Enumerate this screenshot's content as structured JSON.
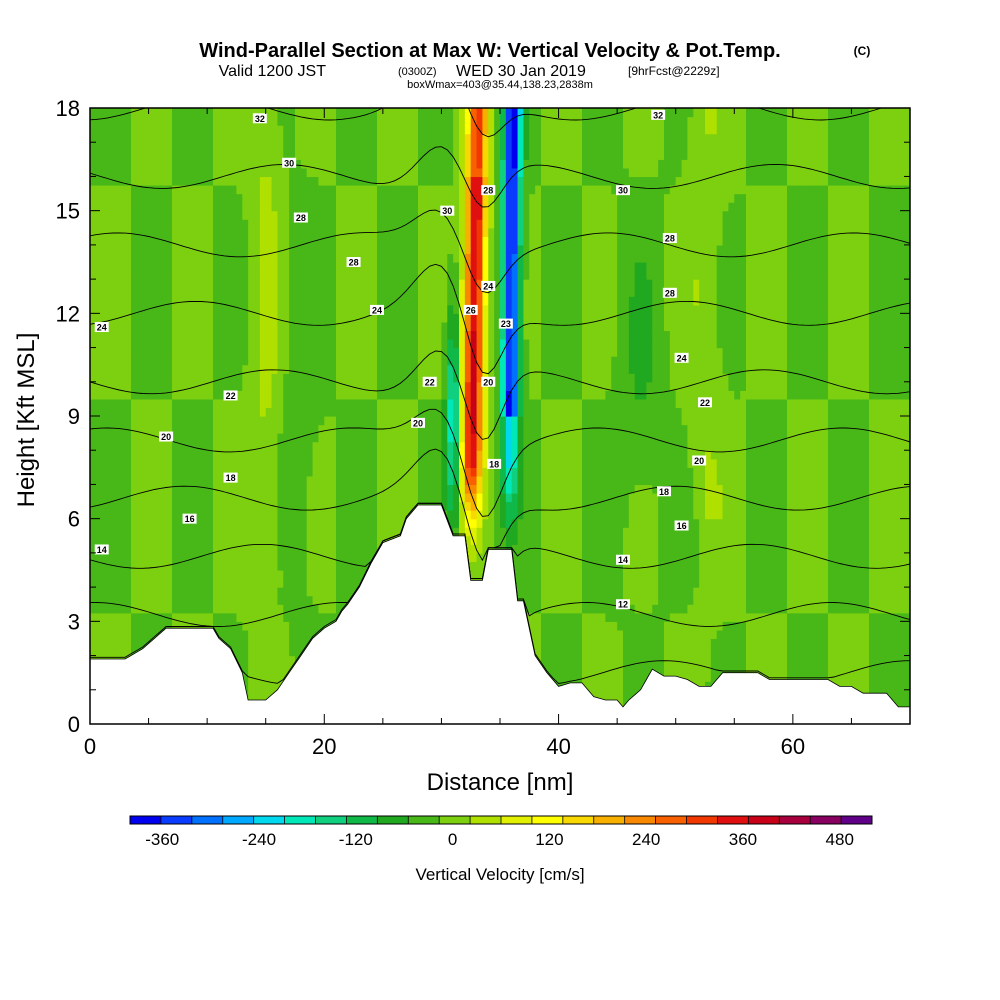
{
  "chart_data": {
    "type": "contour_cross_section",
    "title": "Wind-Parallel Section at Max W: Vertical Velocity & Pot.Temp.",
    "title_mark": "(C)",
    "subtitle_valid": "Valid 1200 JST",
    "subtitle_utc": "(0300Z)",
    "subtitle_date": "WED 30 Jan 2019",
    "subtitle_fcst": "[9hrFcst@2229z]",
    "subtitle_box": "boxWmax=403@35.44,138.23,2838m",
    "xlabel": "Distance [nm]",
    "ylabel": "Height [Kft MSL]",
    "xlim": [
      0,
      70
    ],
    "ylim": [
      0,
      18
    ],
    "x_ticks": [
      "0",
      "20",
      "40",
      "60"
    ],
    "y_ticks": [
      "0",
      "3",
      "6",
      "9",
      "12",
      "15",
      "18"
    ],
    "colorbar": {
      "label": "Vertical Velocity [cm/s]",
      "ticks": [
        "-360",
        "-240",
        "-120",
        "0",
        "120",
        "240",
        "360",
        "480"
      ],
      "min": -400,
      "max": 520,
      "step": 40,
      "colors": [
        "#0000f0",
        "#0a3cff",
        "#0070ff",
        "#00a8ff",
        "#00d8f0",
        "#00e8b8",
        "#10d080",
        "#10b848",
        "#20a820",
        "#48b818",
        "#7cd010",
        "#b0e000",
        "#e0f000",
        "#ffff00",
        "#f8d800",
        "#f8b000",
        "#f88800",
        "#f86000",
        "#f03800",
        "#e01010",
        "#c80018",
        "#a8003c",
        "#880060",
        "#600088"
      ]
    },
    "terrain": [
      [
        0,
        1.9
      ],
      [
        3,
        1.9
      ],
      [
        4.5,
        2.2
      ],
      [
        5.5,
        2.5
      ],
      [
        6.5,
        2.8
      ],
      [
        10.5,
        2.8
      ],
      [
        11,
        2.5
      ],
      [
        12,
        2.2
      ],
      [
        13,
        1.5
      ],
      [
        13.5,
        0.7
      ],
      [
        15,
        0.7
      ],
      [
        16,
        1
      ],
      [
        17,
        1.5
      ],
      [
        18,
        2
      ],
      [
        19,
        2.5
      ],
      [
        20,
        2.8
      ],
      [
        21,
        3
      ],
      [
        21.5,
        3.3
      ],
      [
        22,
        3.5
      ],
      [
        23,
        4
      ],
      [
        24,
        4.7
      ],
      [
        25,
        5.3
      ],
      [
        26.5,
        5.5
      ],
      [
        27,
        6
      ],
      [
        28,
        6.4
      ],
      [
        30,
        6.4
      ],
      [
        31,
        5.5
      ],
      [
        32,
        5.5
      ],
      [
        32.5,
        4.2
      ],
      [
        33.5,
        4.2
      ],
      [
        34,
        5.1
      ],
      [
        36,
        5.1
      ],
      [
        36.5,
        3.6
      ],
      [
        37,
        3.6
      ],
      [
        38,
        2
      ],
      [
        39,
        1.5
      ],
      [
        40,
        1.1
      ],
      [
        41,
        1.2
      ],
      [
        42,
        1.2
      ],
      [
        43,
        0.8
      ],
      [
        44,
        0.7
      ],
      [
        45,
        0.7
      ],
      [
        45.5,
        0.5
      ],
      [
        46,
        0.7
      ],
      [
        47,
        1
      ],
      [
        47.5,
        1.3
      ],
      [
        48,
        1.6
      ],
      [
        49,
        1.4
      ],
      [
        50,
        1.4
      ],
      [
        51,
        1.3
      ],
      [
        52,
        1.1
      ],
      [
        53,
        1.1
      ],
      [
        54,
        1.5
      ],
      [
        56,
        1.5
      ],
      [
        57,
        1.5
      ],
      [
        58,
        1.3
      ],
      [
        59,
        1.3
      ],
      [
        60,
        1.3
      ],
      [
        61,
        1.3
      ],
      [
        62,
        1.3
      ],
      [
        63,
        1.3
      ],
      [
        64,
        1.1
      ],
      [
        65,
        1.1
      ],
      [
        66,
        0.9
      ],
      [
        68,
        0.9
      ],
      [
        69,
        0.5
      ],
      [
        70,
        0.5
      ]
    ],
    "isentrope_levels": [
      12,
      14,
      16,
      18,
      20,
      22,
      24,
      26,
      28,
      30,
      32
    ],
    "isentrope_labels": [
      {
        "text": "32",
        "x": 14.5,
        "y": 17.7
      },
      {
        "text": "32",
        "x": 48.5,
        "y": 17.8
      },
      {
        "text": "30",
        "x": 17,
        "y": 16.4
      },
      {
        "text": "30",
        "x": 30.5,
        "y": 15.0
      },
      {
        "text": "30",
        "x": 45.5,
        "y": 15.6
      },
      {
        "text": "28",
        "x": 18,
        "y": 14.8
      },
      {
        "text": "28",
        "x": 22.5,
        "y": 13.5
      },
      {
        "text": "28",
        "x": 34,
        "y": 15.6
      },
      {
        "text": "28",
        "x": 49.5,
        "y": 14.2
      },
      {
        "text": "28",
        "x": 49.5,
        "y": 12.6
      },
      {
        "text": "24",
        "x": 1,
        "y": 11.6
      },
      {
        "text": "24",
        "x": 24.5,
        "y": 12.1
      },
      {
        "text": "24",
        "x": 34,
        "y": 12.8
      },
      {
        "text": "24",
        "x": 50.5,
        "y": 10.7
      },
      {
        "text": "26",
        "x": 32.5,
        "y": 12.1
      },
      {
        "text": "23",
        "x": 35.5,
        "y": 11.7
      },
      {
        "text": "22",
        "x": 12,
        "y": 9.6
      },
      {
        "text": "22",
        "x": 29,
        "y": 10.0
      },
      {
        "text": "22",
        "x": 52.5,
        "y": 9.4
      },
      {
        "text": "20",
        "x": 6.5,
        "y": 8.4
      },
      {
        "text": "20",
        "x": 28,
        "y": 8.8
      },
      {
        "text": "20",
        "x": 34,
        "y": 10.0
      },
      {
        "text": "20",
        "x": 52,
        "y": 7.7
      },
      {
        "text": "18",
        "x": 12,
        "y": 7.2
      },
      {
        "text": "18",
        "x": 34.5,
        "y": 7.6
      },
      {
        "text": "18",
        "x": 49,
        "y": 6.8
      },
      {
        "text": "16",
        "x": 8.5,
        "y": 6.0
      },
      {
        "text": "16",
        "x": 50.5,
        "y": 5.8
      },
      {
        "text": "14",
        "x": 1,
        "y": 5.1
      },
      {
        "text": "14",
        "x": 45.5,
        "y": 4.8
      },
      {
        "text": "12",
        "x": 45.5,
        "y": 3.5
      }
    ]
  }
}
